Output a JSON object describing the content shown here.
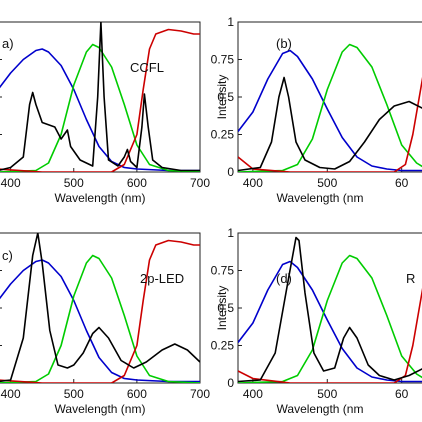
{
  "chart_data": [
    {
      "type": "line",
      "label": "a)",
      "annotation": "CCFL",
      "xlabel": "Wavelength (nm)",
      "ylabel": "",
      "xlim": [
        380,
        700
      ],
      "ylim": [
        0,
        1
      ],
      "x_ticks": [
        "400",
        "500",
        "600",
        "700"
      ],
      "y_ticks": [],
      "series": [
        {
          "color": "#0000cc",
          "points": [
            [
              380,
              0.55
            ],
            [
              400,
              0.66
            ],
            [
              420,
              0.75
            ],
            [
              440,
              0.81
            ],
            [
              450,
              0.82
            ],
            [
              460,
              0.8
            ],
            [
              480,
              0.71
            ],
            [
              500,
              0.55
            ],
            [
              520,
              0.35
            ],
            [
              540,
              0.17
            ],
            [
              560,
              0.07
            ],
            [
              580,
              0.03
            ],
            [
              600,
              0.02
            ],
            [
              650,
              0.01
            ],
            [
              700,
              0.01
            ]
          ]
        },
        {
          "color": "#00cc00",
          "points": [
            [
              380,
              0.0
            ],
            [
              440,
              0.01
            ],
            [
              460,
              0.06
            ],
            [
              480,
              0.25
            ],
            [
              500,
              0.58
            ],
            [
              520,
              0.8
            ],
            [
              530,
              0.85
            ],
            [
              540,
              0.83
            ],
            [
              560,
              0.7
            ],
            [
              580,
              0.45
            ],
            [
              600,
              0.18
            ],
            [
              620,
              0.05
            ],
            [
              650,
              0.01
            ],
            [
              700,
              0.0
            ]
          ]
        },
        {
          "color": "#cc0000",
          "points": [
            [
              380,
              0.02
            ],
            [
              450,
              0.0
            ],
            [
              560,
              0.0
            ],
            [
              580,
              0.05
            ],
            [
              600,
              0.25
            ],
            [
              610,
              0.55
            ],
            [
              620,
              0.82
            ],
            [
              630,
              0.92
            ],
            [
              650,
              0.95
            ],
            [
              670,
              0.94
            ],
            [
              690,
              0.92
            ],
            [
              700,
              0.92
            ]
          ]
        },
        {
          "color": "#000000",
          "points": [
            [
              380,
              0.01
            ],
            [
              400,
              0.03
            ],
            [
              420,
              0.1
            ],
            [
              430,
              0.45
            ],
            [
              435,
              0.53
            ],
            [
              440,
              0.45
            ],
            [
              450,
              0.33
            ],
            [
              470,
              0.3
            ],
            [
              480,
              0.22
            ],
            [
              490,
              0.28
            ],
            [
              495,
              0.17
            ],
            [
              510,
              0.08
            ],
            [
              530,
              0.04
            ],
            [
              538,
              0.5
            ],
            [
              543,
              1.0
            ],
            [
              548,
              0.5
            ],
            [
              555,
              0.08
            ],
            [
              570,
              0.04
            ],
            [
              580,
              0.1
            ],
            [
              585,
              0.15
            ],
            [
              590,
              0.07
            ],
            [
              600,
              0.03
            ],
            [
              608,
              0.3
            ],
            [
              612,
              0.52
            ],
            [
              618,
              0.3
            ],
            [
              625,
              0.08
            ],
            [
              640,
              0.03
            ],
            [
              670,
              0.01
            ],
            [
              700,
              0.01
            ]
          ]
        }
      ]
    },
    {
      "type": "line",
      "label": "(b)",
      "annotation": "",
      "xlabel": "Wavelength (nm",
      "ylabel": "Intensity",
      "xlim": [
        380,
        630
      ],
      "ylim": [
        0,
        1
      ],
      "x_ticks": [
        "400",
        "500",
        "60"
      ],
      "y_ticks": [
        "0",
        "0.25",
        "0.5",
        "0.75",
        "1"
      ],
      "series": [
        {
          "color": "#0000cc",
          "points": [
            [
              380,
              0.27
            ],
            [
              400,
              0.4
            ],
            [
              420,
              0.62
            ],
            [
              440,
              0.79
            ],
            [
              450,
              0.81
            ],
            [
              460,
              0.77
            ],
            [
              480,
              0.62
            ],
            [
              500,
              0.42
            ],
            [
              520,
              0.23
            ],
            [
              540,
              0.1
            ],
            [
              560,
              0.04
            ],
            [
              580,
              0.02
            ],
            [
              600,
              0.01
            ],
            [
              630,
              0.01
            ]
          ]
        },
        {
          "color": "#00cc00",
          "points": [
            [
              380,
              0.0
            ],
            [
              440,
              0.01
            ],
            [
              460,
              0.05
            ],
            [
              480,
              0.22
            ],
            [
              500,
              0.55
            ],
            [
              520,
              0.8
            ],
            [
              530,
              0.85
            ],
            [
              540,
              0.83
            ],
            [
              560,
              0.7
            ],
            [
              580,
              0.45
            ],
            [
              600,
              0.18
            ],
            [
              620,
              0.06
            ],
            [
              630,
              0.03
            ]
          ]
        },
        {
          "color": "#cc0000",
          "points": [
            [
              380,
              0.1
            ],
            [
              400,
              0.02
            ],
            [
              450,
              0.0
            ],
            [
              590,
              0.0
            ],
            [
              605,
              0.05
            ],
            [
              615,
              0.25
            ],
            [
              622,
              0.45
            ],
            [
              630,
              0.68
            ]
          ]
        },
        {
          "color": "#000000",
          "points": [
            [
              380,
              0.01
            ],
            [
              410,
              0.03
            ],
            [
              425,
              0.2
            ],
            [
              435,
              0.5
            ],
            [
              442,
              0.63
            ],
            [
              448,
              0.5
            ],
            [
              458,
              0.2
            ],
            [
              470,
              0.08
            ],
            [
              490,
              0.03
            ],
            [
              510,
              0.02
            ],
            [
              530,
              0.07
            ],
            [
              550,
              0.2
            ],
            [
              570,
              0.35
            ],
            [
              590,
              0.44
            ],
            [
              610,
              0.47
            ],
            [
              630,
              0.42
            ]
          ]
        }
      ]
    },
    {
      "type": "line",
      "label": "c)",
      "annotation": "2p-LED",
      "xlabel": "Wavelength (nm)",
      "ylabel": "",
      "xlim": [
        380,
        700
      ],
      "ylim": [
        0,
        1
      ],
      "x_ticks": [
        "400",
        "500",
        "600",
        "700"
      ],
      "y_ticks": [],
      "series": [
        {
          "color": "#0000cc",
          "points": [
            [
              380,
              0.55
            ],
            [
              400,
              0.66
            ],
            [
              420,
              0.75
            ],
            [
              440,
              0.81
            ],
            [
              450,
              0.82
            ],
            [
              460,
              0.8
            ],
            [
              480,
              0.71
            ],
            [
              500,
              0.55
            ],
            [
              520,
              0.35
            ],
            [
              540,
              0.17
            ],
            [
              560,
              0.07
            ],
            [
              580,
              0.03
            ],
            [
              600,
              0.02
            ],
            [
              650,
              0.01
            ],
            [
              700,
              0.01
            ]
          ]
        },
        {
          "color": "#00cc00",
          "points": [
            [
              380,
              0.0
            ],
            [
              440,
              0.01
            ],
            [
              460,
              0.06
            ],
            [
              480,
              0.25
            ],
            [
              500,
              0.58
            ],
            [
              520,
              0.8
            ],
            [
              530,
              0.85
            ],
            [
              540,
              0.83
            ],
            [
              560,
              0.7
            ],
            [
              580,
              0.45
            ],
            [
              600,
              0.18
            ],
            [
              620,
              0.05
            ],
            [
              650,
              0.01
            ],
            [
              700,
              0.0
            ]
          ]
        },
        {
          "color": "#cc0000",
          "points": [
            [
              380,
              0.02
            ],
            [
              450,
              0.0
            ],
            [
              560,
              0.0
            ],
            [
              580,
              0.05
            ],
            [
              600,
              0.25
            ],
            [
              610,
              0.55
            ],
            [
              620,
              0.82
            ],
            [
              630,
              0.92
            ],
            [
              650,
              0.95
            ],
            [
              670,
              0.94
            ],
            [
              690,
              0.92
            ],
            [
              700,
              0.92
            ]
          ]
        },
        {
          "color": "#000000",
          "points": [
            [
              380,
              0.01
            ],
            [
              400,
              0.02
            ],
            [
              420,
              0.3
            ],
            [
              435,
              0.85
            ],
            [
              443,
              1.0
            ],
            [
              450,
              0.8
            ],
            [
              462,
              0.35
            ],
            [
              475,
              0.12
            ],
            [
              490,
              0.1
            ],
            [
              500,
              0.12
            ],
            [
              515,
              0.2
            ],
            [
              530,
              0.33
            ],
            [
              540,
              0.37
            ],
            [
              555,
              0.3
            ],
            [
              575,
              0.15
            ],
            [
              595,
              0.1
            ],
            [
              615,
              0.14
            ],
            [
              640,
              0.22
            ],
            [
              660,
              0.26
            ],
            [
              680,
              0.22
            ],
            [
              700,
              0.14
            ]
          ]
        }
      ]
    },
    {
      "type": "line",
      "label": "(d)",
      "annotation": "R",
      "xlabel": "Wavelength (nm",
      "ylabel": "Intensity",
      "xlim": [
        380,
        630
      ],
      "ylim": [
        0,
        1
      ],
      "x_ticks": [
        "400",
        "500",
        "60"
      ],
      "y_ticks": [
        "0",
        "0.25",
        "0.5",
        "0.75",
        "1"
      ],
      "series": [
        {
          "color": "#0000cc",
          "points": [
            [
              380,
              0.27
            ],
            [
              400,
              0.4
            ],
            [
              420,
              0.62
            ],
            [
              440,
              0.79
            ],
            [
              450,
              0.81
            ],
            [
              460,
              0.77
            ],
            [
              480,
              0.62
            ],
            [
              500,
              0.42
            ],
            [
              520,
              0.23
            ],
            [
              540,
              0.1
            ],
            [
              560,
              0.04
            ],
            [
              580,
              0.02
            ],
            [
              600,
              0.01
            ],
            [
              630,
              0.01
            ]
          ]
        },
        {
          "color": "#00cc00",
          "points": [
            [
              380,
              0.0
            ],
            [
              440,
              0.01
            ],
            [
              460,
              0.05
            ],
            [
              480,
              0.22
            ],
            [
              500,
              0.55
            ],
            [
              520,
              0.8
            ],
            [
              530,
              0.85
            ],
            [
              540,
              0.83
            ],
            [
              560,
              0.7
            ],
            [
              580,
              0.45
            ],
            [
              600,
              0.18
            ],
            [
              620,
              0.06
            ],
            [
              630,
              0.03
            ]
          ]
        },
        {
          "color": "#cc0000",
          "points": [
            [
              380,
              0.08
            ],
            [
              400,
              0.03
            ],
            [
              450,
              0.0
            ],
            [
              590,
              0.0
            ],
            [
              605,
              0.05
            ],
            [
              615,
              0.25
            ],
            [
              622,
              0.45
            ],
            [
              630,
              0.68
            ]
          ]
        },
        {
          "color": "#000000",
          "points": [
            [
              380,
              0.01
            ],
            [
              410,
              0.02
            ],
            [
              430,
              0.2
            ],
            [
              448,
              0.7
            ],
            [
              458,
              0.97
            ],
            [
              462,
              0.95
            ],
            [
              470,
              0.6
            ],
            [
              482,
              0.2
            ],
            [
              495,
              0.08
            ],
            [
              510,
              0.1
            ],
            [
              522,
              0.3
            ],
            [
              530,
              0.37
            ],
            [
              540,
              0.3
            ],
            [
              555,
              0.12
            ],
            [
              570,
              0.05
            ],
            [
              590,
              0.02
            ],
            [
              610,
              0.05
            ],
            [
              630,
              0.1
            ]
          ]
        }
      ]
    }
  ]
}
